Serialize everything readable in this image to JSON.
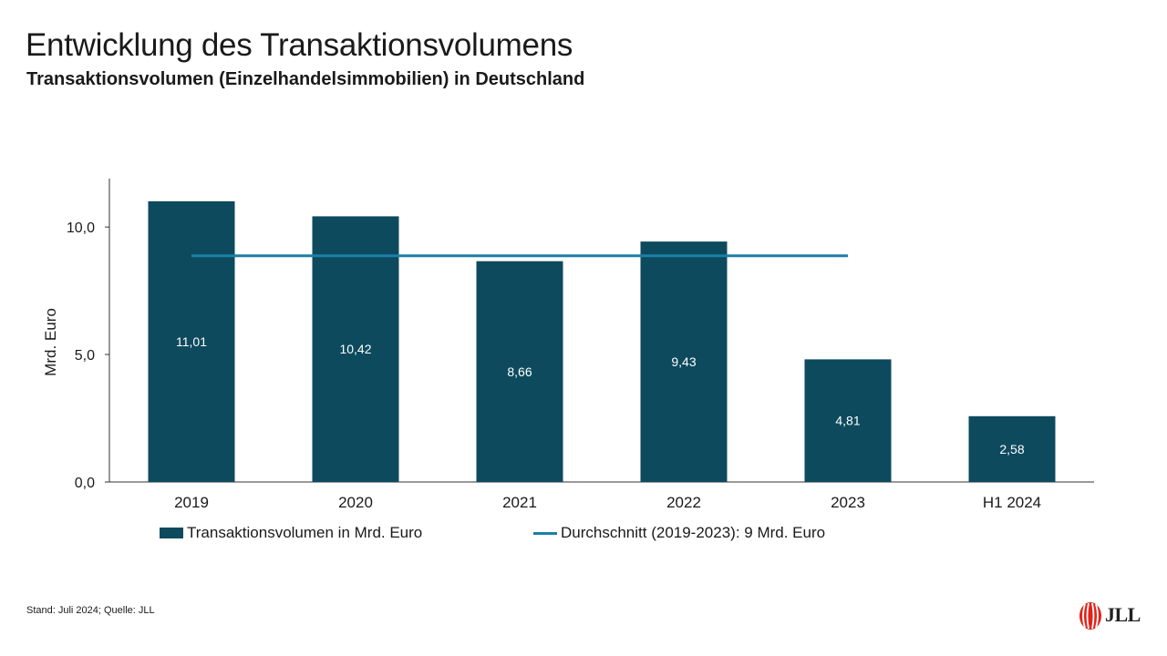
{
  "title": "Entwicklung des Transaktionsvolumens",
  "subtitle": "Transaktionsvolumen (Einzelhandelsimmobilien) in Deutschland",
  "footer": "Stand: Juli 2024; Quelle: JLL",
  "logo": {
    "text": "JLL",
    "icon": "jll-logo-icon"
  },
  "colors": {
    "bar": "#0d4a5e",
    "avg_line": "#1b7fa8",
    "axis": "#333333",
    "bar_label": "#ffffff"
  },
  "chart_data": {
    "type": "bar",
    "categories": [
      "2019",
      "2020",
      "2021",
      "2022",
      "2023",
      "H1 2024"
    ],
    "series": [
      {
        "name": "Transaktionsvolumen in Mrd. Euro",
        "values": [
          11.01,
          10.42,
          8.66,
          9.43,
          4.81,
          2.58
        ]
      }
    ],
    "data_labels": [
      "11,01",
      "10,42",
      "8,66",
      "9,43",
      "4,81",
      "2,58"
    ],
    "average_line": {
      "name": "Durchschnitt (2019-2023): 9 Mrd. Euro",
      "value": 8.87,
      "from": "2019",
      "to": "2023"
    },
    "ylabel": "Mrd. Euro",
    "yticks": [
      0,
      5,
      10
    ],
    "ytick_labels": [
      "0,0",
      "5,0",
      "10,0"
    ],
    "ylim": [
      0,
      11.9
    ],
    "legend_position": "bottom",
    "grid": false
  }
}
